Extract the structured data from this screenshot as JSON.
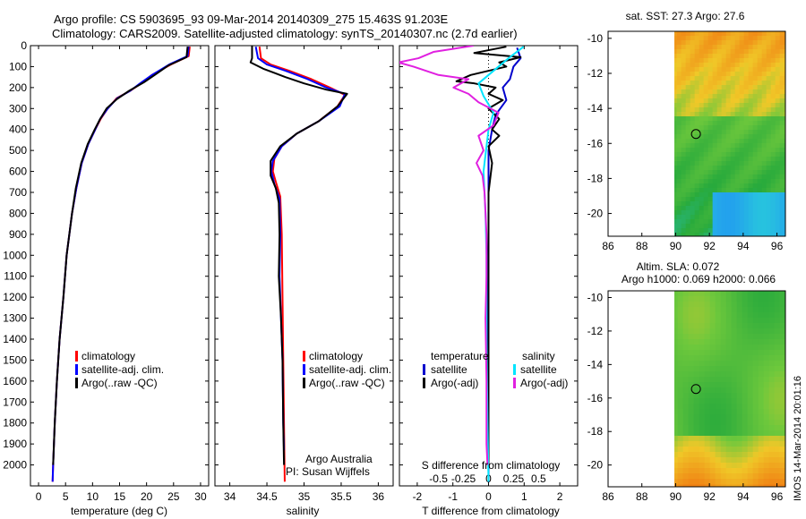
{
  "figure": {
    "title_line1": "Argo profile: CS 5903695_93 09-Mar-2014 20140309_275 15.463S 91.203E",
    "title_line2": "Climatology: CARS2009. Satellite-adjusted climatology: synTS_20140307.nc (2.7d earlier)",
    "footer_vertical": "IMOS 14-Mar-2014 20:01:16",
    "credit_line1": "Argo Australia",
    "credit_line2": "PI: Susan Wijffels"
  },
  "colors": {
    "climatology": "#ff0000",
    "satellite": "#0000ff",
    "argo": "#000000",
    "sat_diff": "#0000cc",
    "sat_s_diff": "#00e5ff",
    "argo_s_diff": "#e020e0"
  },
  "chart_data": [
    {
      "type": "line",
      "id": "temperature",
      "xlabel": "temperature (deg C)",
      "xlim": [
        -1.5,
        31.5
      ],
      "xticks": [
        0,
        5,
        10,
        15,
        20,
        25,
        30
      ],
      "ylim": [
        0,
        2100
      ],
      "yticks": [
        0,
        100,
        200,
        300,
        400,
        500,
        600,
        700,
        800,
        900,
        1000,
        1100,
        1200,
        1300,
        1400,
        1500,
        1600,
        1700,
        1800,
        1900,
        2000
      ],
      "legend": [
        "climatology",
        "satellite-adj. clim.",
        "Argo(..raw -QC)"
      ],
      "series": [
        {
          "name": "climatology",
          "color": "#ff0000",
          "points": [
            [
              28,
              5
            ],
            [
              27.8,
              50
            ],
            [
              24.5,
              90
            ],
            [
              21,
              140
            ],
            [
              19,
              180
            ],
            [
              17,
              215
            ],
            [
              14.5,
              250
            ],
            [
              12.8,
              300
            ],
            [
              11.5,
              350
            ],
            [
              10.5,
              400
            ],
            [
              9.2,
              470
            ],
            [
              8,
              560
            ],
            [
              7,
              680
            ],
            [
              6.2,
              800
            ],
            [
              5.2,
              1000
            ],
            [
              4.6,
              1200
            ],
            [
              3.9,
              1400
            ],
            [
              3.4,
              1600
            ],
            [
              3,
              1800
            ],
            [
              2.7,
              2000
            ],
            [
              2.6,
              2080
            ]
          ]
        },
        {
          "name": "satellite-adj. clim.",
          "color": "#0000ff",
          "points": [
            [
              27.8,
              5
            ],
            [
              27.6,
              50
            ],
            [
              24.2,
              90
            ],
            [
              21,
              140
            ],
            [
              18.8,
              180
            ],
            [
              17,
              215
            ],
            [
              14.6,
              250
            ],
            [
              12.8,
              300
            ],
            [
              11.4,
              350
            ],
            [
              10.5,
              400
            ],
            [
              9.2,
              470
            ],
            [
              8,
              560
            ],
            [
              7,
              680
            ],
            [
              6.2,
              800
            ],
            [
              5.2,
              1000
            ],
            [
              4.6,
              1200
            ],
            [
              3.9,
              1400
            ],
            [
              3.4,
              1600
            ],
            [
              3,
              1800
            ],
            [
              2.7,
              2000
            ],
            [
              2.6,
              2080
            ]
          ]
        },
        {
          "name": "Argo(..raw -QC)",
          "color": "#000000",
          "points": [
            [
              27.6,
              5
            ],
            [
              27.4,
              55
            ],
            [
              24,
              95
            ],
            [
              21.5,
              140
            ],
            [
              19.5,
              175
            ],
            [
              16.8,
              215
            ],
            [
              14.5,
              255
            ],
            [
              12.6,
              300
            ],
            [
              11.4,
              350
            ],
            [
              10.4,
              400
            ],
            [
              9.1,
              470
            ],
            [
              7.9,
              560
            ],
            [
              6.9,
              680
            ],
            [
              6.2,
              800
            ],
            [
              5.2,
              1000
            ],
            [
              4.6,
              1200
            ],
            [
              3.9,
              1400
            ],
            [
              3.4,
              1600
            ],
            [
              3,
              1800
            ],
            [
              2.7,
              2000
            ]
          ]
        }
      ]
    },
    {
      "type": "line",
      "id": "salinity",
      "xlabel": "salinity",
      "xlim": [
        33.8,
        36.2
      ],
      "xticks": [
        34,
        34.5,
        35,
        35.5,
        36
      ],
      "xticklabels": [
        "34",
        "34.5",
        "35",
        "35.5",
        "36"
      ],
      "ylim": [
        0,
        2100
      ],
      "legend": [
        "climatology",
        "satellite-adj. clim.",
        "Argo(..raw -QC)"
      ],
      "series": [
        {
          "name": "climatology",
          "color": "#ff0000",
          "points": [
            [
              34.4,
              5
            ],
            [
              34.42,
              60
            ],
            [
              34.55,
              90
            ],
            [
              34.8,
              120
            ],
            [
              35.1,
              160
            ],
            [
              35.35,
              200
            ],
            [
              35.55,
              235
            ],
            [
              35.45,
              290
            ],
            [
              35.2,
              360
            ],
            [
              34.9,
              420
            ],
            [
              34.7,
              480
            ],
            [
              34.6,
              540
            ],
            [
              34.58,
              600
            ],
            [
              34.62,
              650
            ],
            [
              34.68,
              720
            ],
            [
              34.7,
              900
            ],
            [
              34.71,
              1200
            ],
            [
              34.72,
              1500
            ],
            [
              34.73,
              1800
            ],
            [
              34.74,
              2080
            ]
          ]
        },
        {
          "name": "satellite-adj. clim.",
          "color": "#0000ff",
          "points": [
            [
              34.35,
              5
            ],
            [
              34.38,
              60
            ],
            [
              34.5,
              90
            ],
            [
              34.75,
              120
            ],
            [
              35.05,
              160
            ],
            [
              35.3,
              200
            ],
            [
              35.55,
              230
            ],
            [
              35.48,
              290
            ],
            [
              35.2,
              360
            ],
            [
              34.9,
              420
            ],
            [
              34.7,
              480
            ],
            [
              34.58,
              550
            ],
            [
              34.56,
              600
            ],
            [
              34.6,
              660
            ],
            [
              34.67,
              730
            ],
            [
              34.68,
              900
            ],
            [
              34.67,
              1100
            ],
            [
              34.69,
              1300
            ],
            [
              34.71,
              1500
            ],
            [
              34.72,
              1800
            ],
            [
              34.73,
              1930
            ]
          ]
        },
        {
          "name": "Argo(..raw -QC)",
          "color": "#000000",
          "points": [
            [
              34.3,
              0
            ],
            [
              34.3,
              60
            ],
            [
              34.28,
              80
            ],
            [
              34.45,
              110
            ],
            [
              34.6,
              130
            ],
            [
              34.75,
              150
            ],
            [
              35,
              180
            ],
            [
              35.3,
              210
            ],
            [
              35.58,
              230
            ],
            [
              35.45,
              290
            ],
            [
              35.2,
              360
            ],
            [
              34.9,
              420
            ],
            [
              34.68,
              480
            ],
            [
              34.55,
              550
            ],
            [
              34.55,
              620
            ],
            [
              34.62,
              680
            ],
            [
              34.66,
              750
            ],
            [
              34.67,
              900
            ],
            [
              34.66,
              1100
            ],
            [
              34.69,
              1300
            ],
            [
              34.71,
              1500
            ],
            [
              34.72,
              1800
            ],
            [
              34.73,
              2000
            ]
          ]
        }
      ]
    },
    {
      "type": "line",
      "id": "difference",
      "xlabel": "T difference from climatology",
      "xlabel_top": "S difference from climatology",
      "xlim": [
        -2.5,
        2.5
      ],
      "xticks": [
        -2,
        -1,
        0,
        1,
        2
      ],
      "xticks_s": [
        -0.5,
        -0.25,
        0,
        0.25,
        0.5
      ],
      "xticklabels_s": [
        "-0.5",
        "-0.25",
        "0",
        "0.25",
        "0.5"
      ],
      "ylim": [
        0,
        2100
      ],
      "legend_headers": [
        "temperature",
        "salinity"
      ],
      "legend": [
        "satellite",
        "Argo(-adj)",
        "satellite",
        "Argo(-adj)"
      ],
      "series": [
        {
          "name": "temperature satellite",
          "color": "#0000cc",
          "points": [
            [
              0.8,
              10
            ],
            [
              0.9,
              60
            ],
            [
              0.7,
              100
            ],
            [
              0.6,
              160
            ],
            [
              0.4,
              200
            ],
            [
              0.5,
              260
            ],
            [
              0.2,
              330
            ],
            [
              0.1,
              400
            ],
            [
              0,
              500
            ],
            [
              0,
              700
            ],
            [
              0,
              900
            ],
            [
              -0.05,
              1200
            ],
            [
              -0.05,
              1600
            ],
            [
              0,
              1900
            ],
            [
              0,
              2080
            ]
          ]
        },
        {
          "name": "temperature Argo(-adj)",
          "color": "#000000",
          "points": [
            [
              0.5,
              5
            ],
            [
              -0.4,
              35
            ],
            [
              0.9,
              55
            ],
            [
              0.3,
              80
            ],
            [
              0.5,
              100
            ],
            [
              -0.5,
              140
            ],
            [
              -0.9,
              170
            ],
            [
              -0.4,
              180
            ],
            [
              0.2,
              200
            ],
            [
              0,
              230
            ],
            [
              0.4,
              260
            ],
            [
              0,
              300
            ],
            [
              0.3,
              350
            ],
            [
              0.1,
              400
            ],
            [
              0.3,
              430
            ],
            [
              0,
              480
            ],
            [
              0.1,
              560
            ],
            [
              0,
              700
            ],
            [
              0,
              900
            ],
            [
              0,
              1100
            ],
            [
              0,
              1400
            ],
            [
              0,
              1700
            ],
            [
              0,
              2000
            ]
          ]
        },
        {
          "name": "salinity satellite",
          "color": "#00e5ff",
          "points": [
            [
              0.35,
              5
            ],
            [
              0.2,
              60
            ],
            [
              0.1,
              100
            ],
            [
              -0.1,
              180
            ],
            [
              -0.05,
              240
            ],
            [
              0.05,
              320
            ],
            [
              0,
              400
            ],
            [
              -0.05,
              600
            ],
            [
              -0.03,
              800
            ],
            [
              -0.02,
              1000
            ],
            [
              -0.02,
              1400
            ],
            [
              -0.01,
              1800
            ],
            [
              0,
              2080
            ]
          ]
        },
        {
          "name": "salinity Argo(-adj)",
          "color": "#e020e0",
          "points": [
            [
              -0.15,
              0
            ],
            [
              -0.55,
              30
            ],
            [
              -0.7,
              60
            ],
            [
              -0.9,
              80
            ],
            [
              -0.75,
              100
            ],
            [
              -0.5,
              140
            ],
            [
              -0.2,
              160
            ],
            [
              -0.35,
              200
            ],
            [
              -0.2,
              230
            ],
            [
              -0.1,
              270
            ],
            [
              0.1,
              320
            ],
            [
              0.05,
              380
            ],
            [
              -0.1,
              430
            ],
            [
              -0.05,
              500
            ],
            [
              -0.12,
              560
            ],
            [
              -0.06,
              620
            ],
            [
              -0.04,
              700
            ],
            [
              -0.02,
              900
            ],
            [
              -0.02,
              1100
            ],
            [
              -0.03,
              1300
            ],
            [
              -0.02,
              1600
            ],
            [
              -0.02,
              1900
            ],
            [
              -0.01,
              2000
            ]
          ]
        }
      ]
    },
    {
      "type": "heatmap",
      "id": "sst_map",
      "title": "sat. SST: 27.3 Argo: 27.6",
      "xlim": [
        86,
        96.5
      ],
      "ylim": [
        -21.3,
        -9.6
      ],
      "xticks": [
        86,
        88,
        90,
        92,
        94,
        96
      ],
      "yticks": [
        -10,
        -12,
        -14,
        -16,
        -18,
        -20
      ],
      "data_xmin": 89.8,
      "argo_position": [
        91.203,
        -15.463
      ]
    },
    {
      "type": "heatmap",
      "id": "sla_map",
      "title_line1": "Altim. SLA: 0.072",
      "title_line2": "Argo h1000: 0.069 h2000: 0.066",
      "xlim": [
        86,
        96.5
      ],
      "ylim": [
        -21.3,
        -9.6
      ],
      "xticks": [
        86,
        88,
        90,
        92,
        94,
        96
      ],
      "yticks": [
        -10,
        -12,
        -14,
        -16,
        -18,
        -20
      ],
      "data_xmin": 89.8,
      "argo_position": [
        91.203,
        -15.463
      ]
    }
  ]
}
